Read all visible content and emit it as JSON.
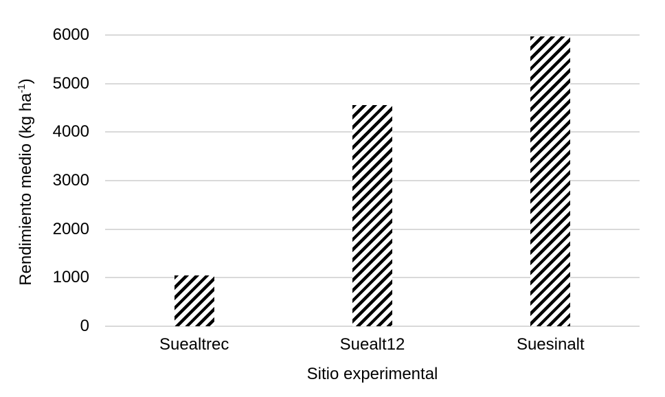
{
  "chart_data": {
    "type": "bar",
    "categories": [
      "Suealtrec",
      "Suealt12",
      "Suesinalt"
    ],
    "values": [
      1050,
      4560,
      5970
    ],
    "title": "",
    "xlabel": "Sitio experimental",
    "ylabel": "Rendimiento medio (kg ha-1)",
    "ylabel_parts": {
      "prefix": "Rendimiento medio (kg ha",
      "sup": "-1",
      "suffix": ")"
    },
    "ylim": [
      0,
      6000
    ],
    "yticks": [
      0,
      1000,
      2000,
      3000,
      4000,
      5000,
      6000
    ],
    "grid": true,
    "legend": "none",
    "bar_pattern": "diagonal-hatch-upward",
    "colors": {
      "hatch": "#000000",
      "bar_bg": "#ffffff",
      "gridline": "#d9d9d9",
      "text": "#000000",
      "background": "#ffffff"
    }
  }
}
